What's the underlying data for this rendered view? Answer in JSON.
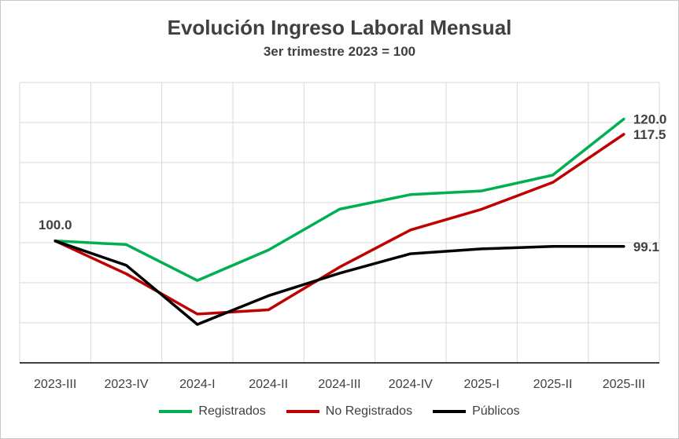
{
  "chart_data": {
    "type": "line",
    "title": "Evolución Ingreso Laboral Mensual",
    "subtitle": "3er trimestre 2023 = 100",
    "categories": [
      "2023-III",
      "2023-IV",
      "2024-I",
      "2024-II",
      "2024-III",
      "2024-IV",
      "2025-I",
      "2025-II",
      "2025-III"
    ],
    "ylim": [
      80,
      126
    ],
    "grid": true,
    "legend_position": "bottom",
    "series": [
      {
        "name": "Registrados",
        "color": "#00b050",
        "values": [
          100.0,
          99.4,
          93.5,
          98.5,
          105.2,
          107.6,
          108.2,
          110.8,
          120.0
        ]
      },
      {
        "name": "No Registrados",
        "color": "#c00000",
        "values": [
          100.0,
          94.6,
          88.0,
          88.7,
          95.7,
          101.8,
          105.2,
          109.6,
          117.5
        ]
      },
      {
        "name": "Públicos",
        "color": "#000000",
        "values": [
          100.0,
          96.0,
          86.3,
          91.0,
          94.7,
          97.9,
          98.7,
          99.1,
          99.1
        ]
      }
    ],
    "data_labels": [
      {
        "text": "100.0"
      },
      {
        "text": "120.0"
      },
      {
        "text": "117.5"
      },
      {
        "text": "99.1"
      }
    ]
  }
}
